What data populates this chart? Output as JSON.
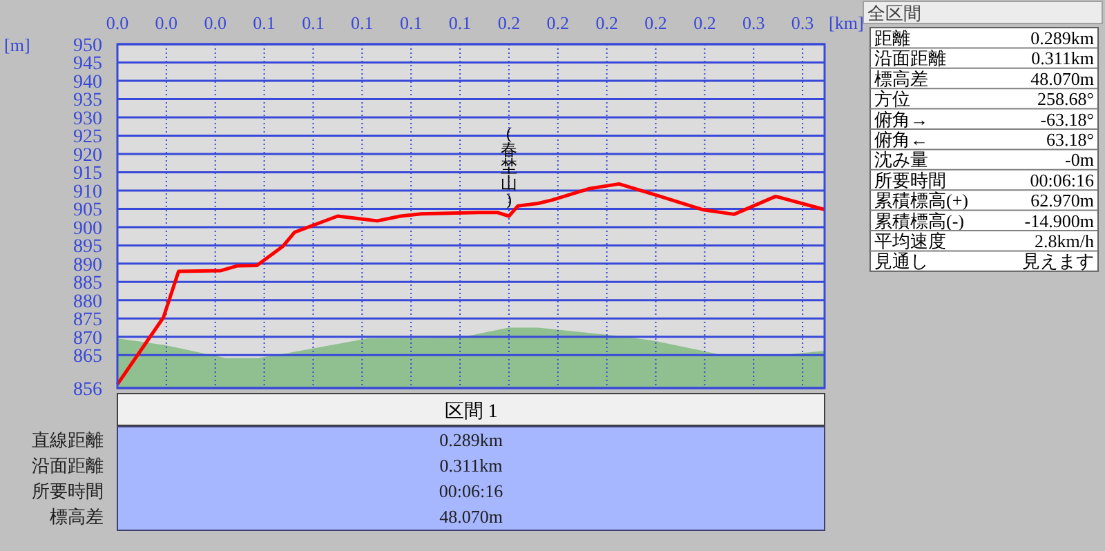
{
  "chart_data": [
    {
      "type": "line",
      "xlabel": "[km]",
      "ylabel": "[m]",
      "xlim": [
        0,
        0.289
      ],
      "ylim": [
        856,
        950
      ],
      "xticks": [
        {
          "value": 0,
          "label": "0.0"
        },
        {
          "value": 0.02,
          "label": "0.0"
        },
        {
          "value": 0.04,
          "label": "0.0"
        },
        {
          "value": 0.06,
          "label": "0.1"
        },
        {
          "value": 0.08,
          "label": "0.1"
        },
        {
          "value": 0.1,
          "label": "0.1"
        },
        {
          "value": 0.12,
          "label": "0.1"
        },
        {
          "value": 0.14,
          "label": "0.1"
        },
        {
          "value": 0.16,
          "label": "0.2"
        },
        {
          "value": 0.18,
          "label": "0.2"
        },
        {
          "value": 0.2,
          "label": "0.2"
        },
        {
          "value": 0.22,
          "label": "0.2"
        },
        {
          "value": 0.24,
          "label": "0.2"
        },
        {
          "value": 0.26,
          "label": "0.3"
        },
        {
          "value": 0.28,
          "label": "0.3"
        }
      ],
      "yticks": [
        856,
        865,
        870,
        875,
        880,
        885,
        890,
        895,
        900,
        905,
        910,
        915,
        920,
        925,
        930,
        935,
        940,
        945,
        950
      ],
      "grid": true,
      "series": [
        {
          "type": "area",
          "color": "#90c090",
          "x": [
            0,
            0.0197,
            0.0442,
            0.0574,
            0.0666,
            0.1025,
            0.1399,
            0.1598,
            0.172,
            0.204,
            0.219,
            0.2473,
            0.2717,
            0.289
          ],
          "values": [
            869.6,
            867.7,
            864.2,
            864.2,
            865.2,
            869.6,
            869.8,
            872.5,
            872.5,
            870.3,
            869,
            865,
            865,
            866.2
          ]
        },
        {
          "type": "line",
          "color": "#ff0000",
          "x": [
            0,
            0.0188,
            0.025,
            0.0423,
            0.0489,
            0.057,
            0.0677,
            0.0724,
            0.08,
            0.09,
            0.0988,
            0.1062,
            0.1157,
            0.1241,
            0.1477,
            0.1552,
            0.16,
            0.1637,
            0.172,
            0.1777,
            0.1927,
            0.205,
            0.2209,
            0.2389,
            0.252,
            0.269,
            0.289
          ],
          "values": [
            857,
            875.3,
            887.9,
            888.1,
            889.4,
            889.5,
            894.8,
            898.6,
            900.5,
            903,
            902.3,
            901.7,
            903,
            903.6,
            904,
            904,
            903,
            905.8,
            906.5,
            907.4,
            910.5,
            911.8,
            908.6,
            904.8,
            903.5,
            908.4,
            904.8
          ]
        }
      ],
      "annotations": [
        {
          "text": "(春埜山)",
          "x": 0.16,
          "y": 903
        }
      ]
    },
    {
      "type": "other",
      "title": "全区間",
      "annotations": [
        "距離",
        "0.289km",
        "沿面距離",
        "0.311km",
        "標高差",
        "48.070m",
        "方位",
        "258.68°",
        "俯角→",
        "-63.18°",
        "俯角←",
        "63.18°",
        "沈み量",
        "-0m",
        "所要時間",
        "00:06:16",
        "累積標高(+)",
        "62.970m",
        "累積標高(-)",
        "-14.900m",
        "平均速度",
        "2.8km/h",
        "見通し",
        "見えます"
      ]
    },
    {
      "type": "other",
      "title": "区間 1",
      "annotations": [
        "直線距離",
        "0.289km",
        "沿面距離",
        "0.311km",
        "所要時間",
        "00:06:16",
        "標高差",
        "48.070m"
      ]
    }
  ]
}
